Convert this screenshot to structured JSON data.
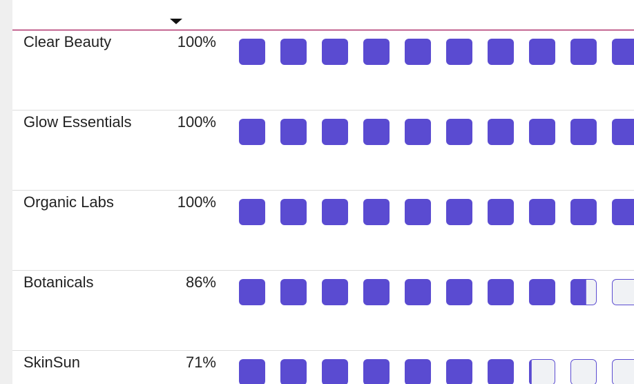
{
  "table": {
    "rows": [
      {
        "name": "Clear Beauty",
        "value": 100,
        "value_label": "100%"
      },
      {
        "name": "Glow Essentials",
        "value": 100,
        "value_label": "100%"
      },
      {
        "name": "Organic Labs",
        "value": 100,
        "value_label": "100%"
      },
      {
        "name": "Botanicals",
        "value": 86,
        "value_label": "86%"
      },
      {
        "name": "SkinSun",
        "value": 71,
        "value_label": "71%"
      }
    ]
  }
}
